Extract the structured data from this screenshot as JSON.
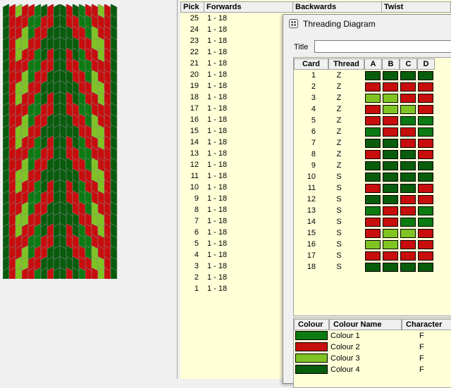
{
  "colors": {
    "colour1": "#0b7a12",
    "colour2": "#c80d0d",
    "colour3": "#7fc422",
    "colour4": "#085c0c",
    "outline": "#8a8a8a"
  },
  "pick_table": {
    "headers": [
      "Pick",
      "Forwards",
      "Backwards",
      "Twist"
    ],
    "rows": [
      {
        "pick": "25",
        "forwards": "1 - 18"
      },
      {
        "pick": "24",
        "forwards": "1 - 18"
      },
      {
        "pick": "23",
        "forwards": "1 - 18"
      },
      {
        "pick": "22",
        "forwards": "1 - 18"
      },
      {
        "pick": "21",
        "forwards": "1 - 18"
      },
      {
        "pick": "20",
        "forwards": "1 - 18"
      },
      {
        "pick": "19",
        "forwards": "1 - 18"
      },
      {
        "pick": "18",
        "forwards": "1 - 18"
      },
      {
        "pick": "17",
        "forwards": "1 - 18"
      },
      {
        "pick": "16",
        "forwards": "1 - 18"
      },
      {
        "pick": "15",
        "forwards": "1 - 18"
      },
      {
        "pick": "14",
        "forwards": "1 - 18"
      },
      {
        "pick": "13",
        "forwards": "1 - 18"
      },
      {
        "pick": "12",
        "forwards": "1 - 18"
      },
      {
        "pick": "11",
        "forwards": "1 - 18"
      },
      {
        "pick": "10",
        "forwards": "1 - 18"
      },
      {
        "pick": "9",
        "forwards": "1 - 18"
      },
      {
        "pick": "8",
        "forwards": "1 - 18"
      },
      {
        "pick": "7",
        "forwards": "1 - 18"
      },
      {
        "pick": "6",
        "forwards": "1 - 18"
      },
      {
        "pick": "5",
        "forwards": "1 - 18"
      },
      {
        "pick": "4",
        "forwards": "1 - 18"
      },
      {
        "pick": "3",
        "forwards": "1 - 18"
      },
      {
        "pick": "2",
        "forwards": "1 - 18"
      },
      {
        "pick": "1",
        "forwards": "1 - 18"
      }
    ]
  },
  "threading_window": {
    "title": "Threading Diagram",
    "title_label": "Title",
    "title_value": "",
    "grid_headers": [
      "Card",
      "Thread",
      "A",
      "B",
      "C",
      "D"
    ],
    "cards": [
      {
        "card": "1",
        "thread": "Z",
        "holes": [
          4,
          4,
          4,
          4
        ]
      },
      {
        "card": "2",
        "thread": "Z",
        "holes": [
          2,
          2,
          2,
          2
        ]
      },
      {
        "card": "3",
        "thread": "Z",
        "holes": [
          3,
          3,
          2,
          2
        ]
      },
      {
        "card": "4",
        "thread": "Z",
        "holes": [
          2,
          3,
          3,
          2
        ]
      },
      {
        "card": "5",
        "thread": "Z",
        "holes": [
          2,
          2,
          1,
          1
        ]
      },
      {
        "card": "6",
        "thread": "Z",
        "holes": [
          1,
          2,
          2,
          1
        ]
      },
      {
        "card": "7",
        "thread": "Z",
        "holes": [
          4,
          4,
          2,
          2
        ]
      },
      {
        "card": "8",
        "thread": "Z",
        "holes": [
          2,
          4,
          4,
          2
        ]
      },
      {
        "card": "9",
        "thread": "Z",
        "holes": [
          4,
          4,
          4,
          4
        ]
      },
      {
        "card": "10",
        "thread": "S",
        "holes": [
          4,
          4,
          4,
          4
        ]
      },
      {
        "card": "11",
        "thread": "S",
        "holes": [
          2,
          4,
          4,
          2
        ]
      },
      {
        "card": "12",
        "thread": "S",
        "holes": [
          4,
          4,
          2,
          2
        ]
      },
      {
        "card": "13",
        "thread": "S",
        "holes": [
          1,
          2,
          2,
          1
        ]
      },
      {
        "card": "14",
        "thread": "S",
        "holes": [
          2,
          2,
          1,
          1
        ]
      },
      {
        "card": "15",
        "thread": "S",
        "holes": [
          2,
          3,
          3,
          2
        ]
      },
      {
        "card": "16",
        "thread": "S",
        "holes": [
          3,
          3,
          2,
          2
        ]
      },
      {
        "card": "17",
        "thread": "S",
        "holes": [
          2,
          2,
          2,
          2
        ]
      },
      {
        "card": "18",
        "thread": "S",
        "holes": [
          4,
          4,
          4,
          4
        ]
      }
    ],
    "colour_headers": [
      "Colour",
      "Colour Name",
      "Character"
    ],
    "colours": [
      {
        "name": "Colour 1",
        "character": "F",
        "color": "#0b7a12"
      },
      {
        "name": "Colour 2",
        "character": "F",
        "color": "#c80d0d"
      },
      {
        "name": "Colour 3",
        "character": "F",
        "color": "#7fc422"
      },
      {
        "name": "Colour 4",
        "character": "F",
        "color": "#085c0c"
      }
    ]
  }
}
